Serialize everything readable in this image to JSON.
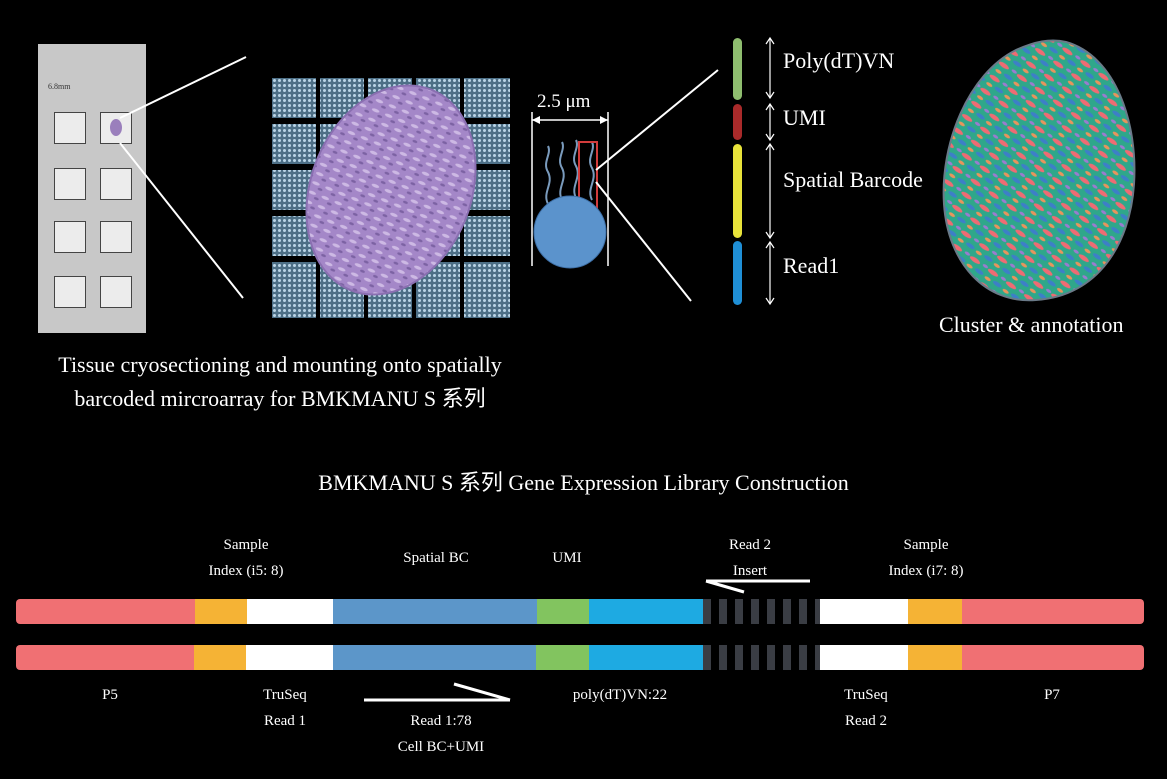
{
  "slide": {
    "dimension_label": "6.8mm"
  },
  "bead": {
    "diameter_label": "2.5  μm"
  },
  "oligo": {
    "segments": [
      {
        "key": "polydt",
        "label": "Poly(dT)VN",
        "color": "#8fbe6f"
      },
      {
        "key": "umi",
        "label": "UMI",
        "color": "#a92a2a"
      },
      {
        "key": "spatial",
        "label": "Spatial Barcode",
        "color": "#e8e33a"
      },
      {
        "key": "read1",
        "label": "Read1",
        "color": "#1f8fd6"
      }
    ]
  },
  "cluster": {
    "label": "Cluster & annotation"
  },
  "caption": {
    "line1": "Tissue cryosectioning and mounting onto spatially",
    "line2": "barcoded mircroarray for  BMKMANU S 系列"
  },
  "library": {
    "title": "BMKMANU S 系列 Gene Expression Library Construction",
    "top_labels": {
      "sample_index_i5": [
        "Sample",
        "Index (i5: 8)"
      ],
      "spatial_bc": "Spatial BC",
      "umi": "UMI",
      "read2_insert": [
        "Read 2",
        "Insert"
      ],
      "sample_index_i7": [
        "Sample",
        "Index (i7: 8)"
      ]
    },
    "bottom_labels": {
      "p5": "P5",
      "truseq_read1": [
        "TruSeq",
        "Read 1"
      ],
      "read1_78": [
        "Read 1:78",
        "Cell BC+UMI"
      ],
      "polydt": "poly(dT)VN:22",
      "truseq_read2": [
        "TruSeq",
        "Read 2"
      ],
      "p7": "P7"
    },
    "colors": {
      "p5": "#f07073",
      "index": "#f5b335",
      "truseq": "#ffffff",
      "spatial": "#5c96c9",
      "umi": "#82c45f",
      "polydt": "#1eaae2",
      "p7": "#f07073"
    }
  }
}
